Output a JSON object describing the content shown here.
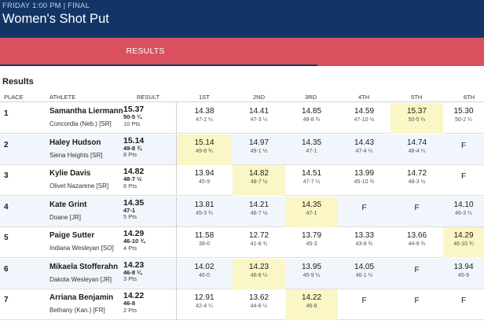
{
  "header": {
    "subtitle": "FRIDAY 1:00 PM | FINAL",
    "title": "Women's Shot Put"
  },
  "tabs": [
    {
      "label": "RESULTS"
    }
  ],
  "section_title": "Results",
  "columns": {
    "place": "PLACE",
    "athlete": "ATHLETE",
    "result": "RESULT",
    "attempts": [
      "1ST",
      "2ND",
      "3RD",
      "4TH",
      "5TH",
      "6TH"
    ]
  },
  "rows": [
    {
      "place": "1",
      "name": "Samantha Liermann",
      "school": "Concordia (Neb.) [SR]",
      "result": "15.37",
      "result_imperial": "50-5 ¼",
      "points": "10 Pts",
      "attempts": [
        {
          "mark": "14.38",
          "imperial": "47-2 ¼"
        },
        {
          "mark": "14.41",
          "imperial": "47-3 ¼"
        },
        {
          "mark": "14.85",
          "imperial": "48-8 ¾"
        },
        {
          "mark": "14.59",
          "imperial": "47-10 ½"
        },
        {
          "mark": "15.37",
          "imperial": "50-5 ¼",
          "best": true
        },
        {
          "mark": "15.30",
          "imperial": "50-2 ¼"
        }
      ]
    },
    {
      "place": "2",
      "name": "Haley Hudson",
      "school": "Siena Heights [SR]",
      "result": "15.14",
      "result_imperial": "49-8 ¾",
      "points": "8 Pts",
      "attempts": [
        {
          "mark": "15.14",
          "imperial": "49-8 ¾",
          "best": true
        },
        {
          "mark": "14.97",
          "imperial": "49-1 ½"
        },
        {
          "mark": "14.35",
          "imperial": "47-1"
        },
        {
          "mark": "14.43",
          "imperial": "47-4 ¼"
        },
        {
          "mark": "14.74",
          "imperial": "48-4 ¼"
        },
        {
          "mark": "F",
          "imperial": ""
        }
      ]
    },
    {
      "place": "3",
      "name": "Kylie Davis",
      "school": "Olivet Nazarene [SR]",
      "result": "14.82",
      "result_imperial": "48-7 ½",
      "points": "6 Pts",
      "attempts": [
        {
          "mark": "13.94",
          "imperial": "45-9"
        },
        {
          "mark": "14.82",
          "imperial": "48-7 ½",
          "best": true
        },
        {
          "mark": "14.51",
          "imperial": "47-7 ¼"
        },
        {
          "mark": "13.99",
          "imperial": "45-10 ¾"
        },
        {
          "mark": "14.72",
          "imperial": "48-3 ½"
        },
        {
          "mark": "F",
          "imperial": ""
        }
      ]
    },
    {
      "place": "4",
      "name": "Kate Grint",
      "school": "Doane [JR]",
      "result": "14.35",
      "result_imperial": "47-1",
      "points": "5 Pts",
      "attempts": [
        {
          "mark": "13.81",
          "imperial": "45-3 ¾"
        },
        {
          "mark": "14.21",
          "imperial": "46-7 ½"
        },
        {
          "mark": "14.35",
          "imperial": "47-1",
          "best": true
        },
        {
          "mark": "F",
          "imperial": ""
        },
        {
          "mark": "F",
          "imperial": ""
        },
        {
          "mark": "14.10",
          "imperial": "46-3 ¼"
        }
      ]
    },
    {
      "place": "5",
      "name": "Paige Sutter",
      "school": "Indiana Wesleyan [SO]",
      "result": "14.29",
      "result_imperial": "46-10 ¾",
      "points": "4 Pts",
      "attempts": [
        {
          "mark": "11.58",
          "imperial": "38-0"
        },
        {
          "mark": "12.72",
          "imperial": "41-8 ¾"
        },
        {
          "mark": "13.79",
          "imperial": "45-3"
        },
        {
          "mark": "13.33",
          "imperial": "43-8 ¾"
        },
        {
          "mark": "13.66",
          "imperial": "44-9 ¾"
        },
        {
          "mark": "14.29",
          "imperial": "46-10 ¾",
          "best": true
        }
      ]
    },
    {
      "place": "6",
      "name": "Mikaela Stofferahn",
      "school": "Dakota Wesleyan [JR]",
      "result": "14.23",
      "result_imperial": "46-8 ¼",
      "points": "3 Pts",
      "attempts": [
        {
          "mark": "14.02",
          "imperial": "46-0"
        },
        {
          "mark": "14.23",
          "imperial": "46-8 ¼",
          "best": true
        },
        {
          "mark": "13.95",
          "imperial": "45-9 ¼"
        },
        {
          "mark": "14.05",
          "imperial": "46-1 ¼"
        },
        {
          "mark": "F",
          "imperial": ""
        },
        {
          "mark": "13.94",
          "imperial": "45-9"
        }
      ]
    },
    {
      "place": "7",
      "name": "Arriana Benjamin",
      "school": "Bethany (Kan.) [FR]",
      "result": "14.22",
      "result_imperial": "46-8",
      "points": "2 Pts",
      "attempts": [
        {
          "mark": "12.91",
          "imperial": "42-4 ¼"
        },
        {
          "mark": "13.62",
          "imperial": "44-8 ¼"
        },
        {
          "mark": "14.22",
          "imperial": "46-8",
          "best": true
        },
        {
          "mark": "F",
          "imperial": ""
        },
        {
          "mark": "F",
          "imperial": ""
        },
        {
          "mark": "F",
          "imperial": ""
        }
      ]
    }
  ]
}
